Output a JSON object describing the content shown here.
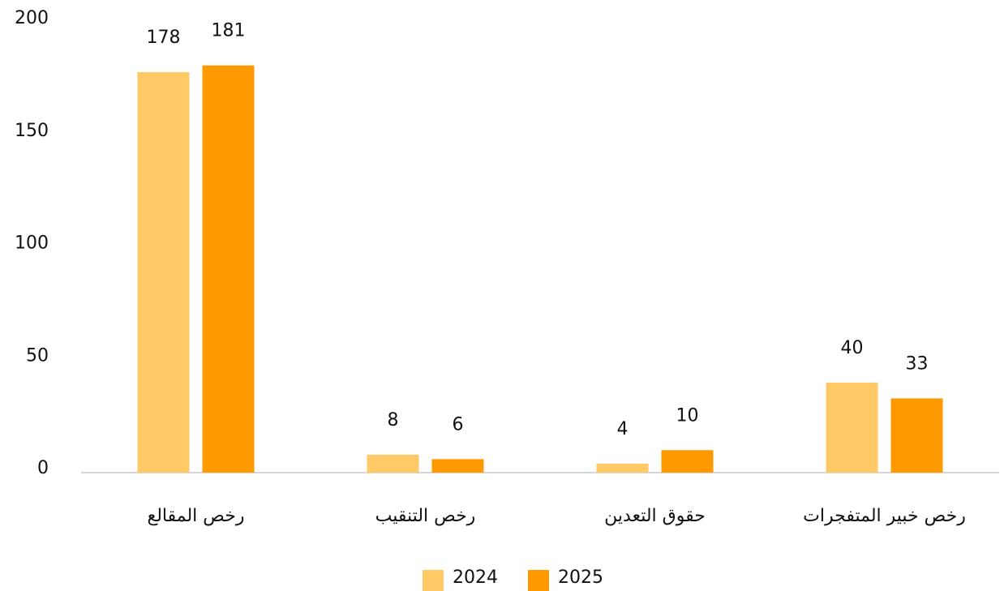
{
  "chart_data": {
    "type": "bar",
    "categories": [
      "رخص المقالع",
      "رخص التنقيب",
      "حقوق التعدين",
      "رخص خبير المتفجرات"
    ],
    "series": [
      {
        "name": "2024",
        "color": "#ffca66",
        "values": [
          178,
          8,
          4,
          40
        ]
      },
      {
        "name": "2025",
        "color": "#ff9900",
        "values": [
          181,
          6,
          10,
          33
        ]
      }
    ],
    "ylim": [
      0,
      200
    ],
    "yticks": [
      0,
      50,
      100,
      150,
      200
    ],
    "grid": false,
    "legend": "bottom"
  }
}
